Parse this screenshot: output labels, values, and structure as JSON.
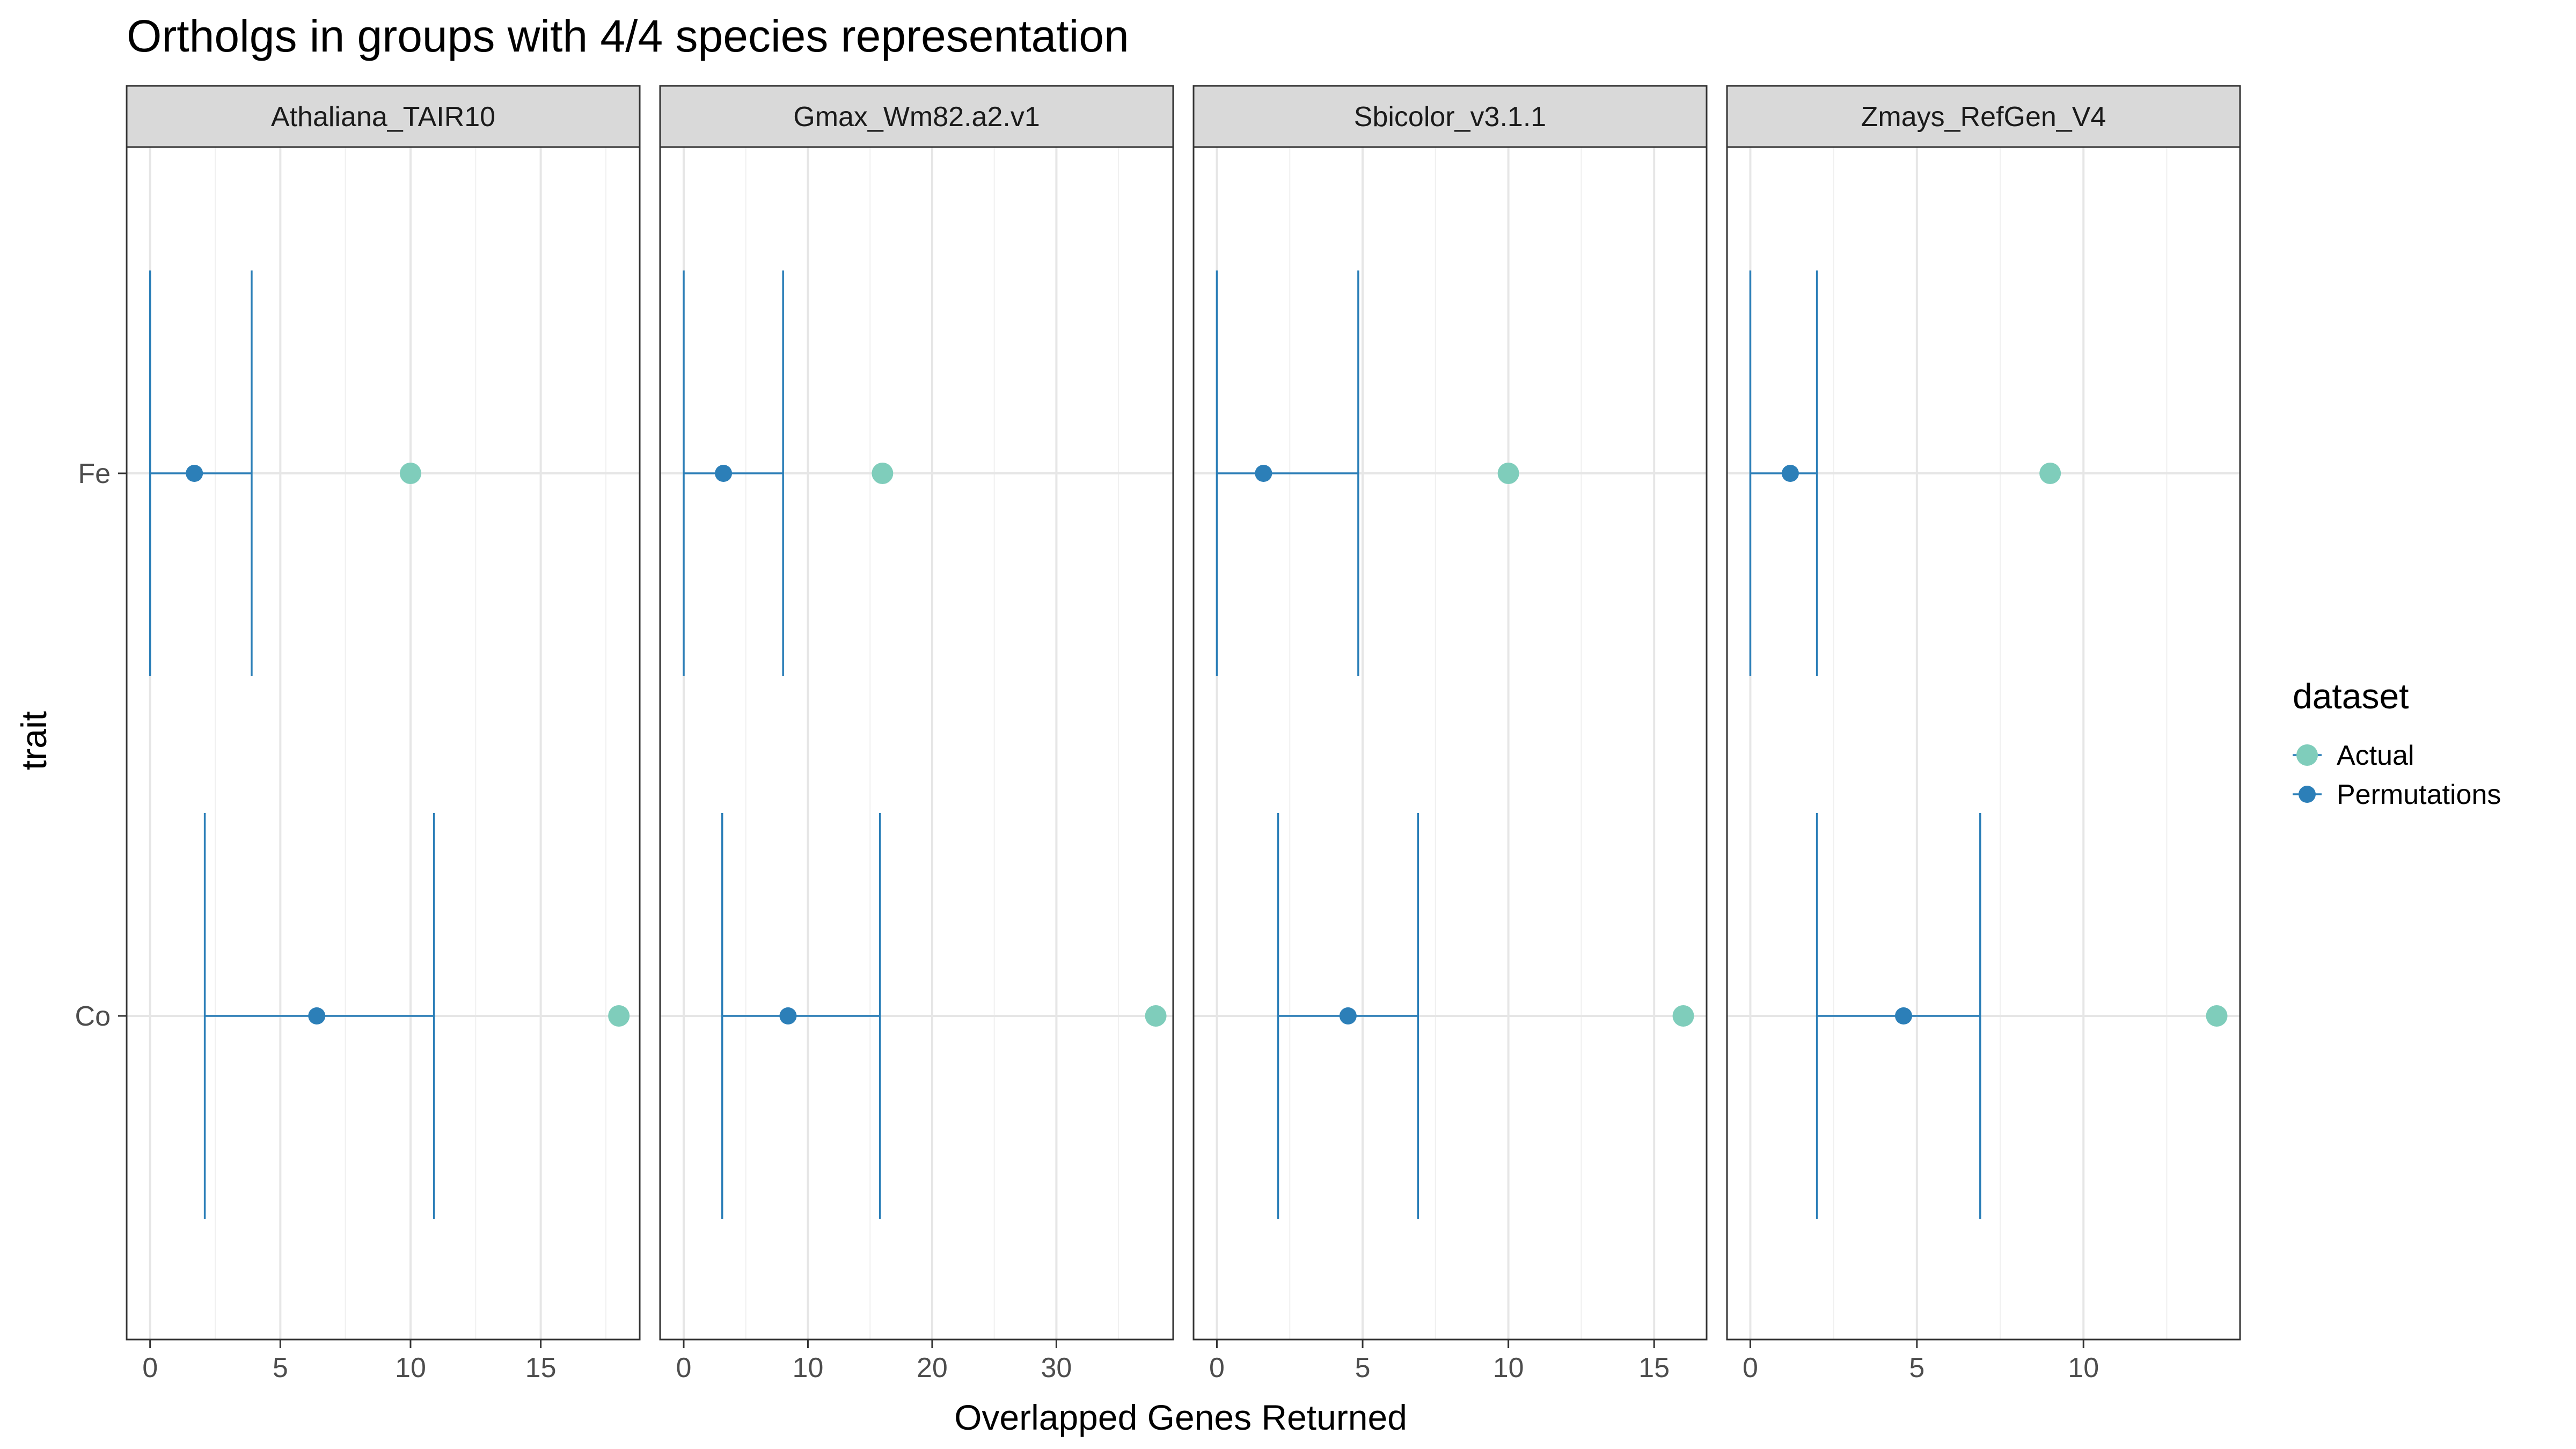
{
  "chart_data": {
    "type": "scatter",
    "title": "Ortholgs in groups with 4/4 species representation",
    "xlabel": "Overlapped Genes Returned",
    "ylabel": "trait",
    "categories": [
      "Fe",
      "Co"
    ],
    "grid": true,
    "legend": {
      "title": "dataset",
      "position": "right",
      "entries": [
        {
          "label": "Actual",
          "color": "#7fcdbb"
        },
        {
          "label": "Permutations",
          "color": "#2c7fb8"
        }
      ]
    },
    "panels": [
      {
        "name": "Athaliana_TAIR10",
        "xlim": [
          -0.9,
          18.8
        ],
        "xticks": [
          0,
          5,
          10,
          15
        ],
        "actual": {
          "Fe": 10,
          "Co": 18
        },
        "permutations": {
          "Fe": {
            "value": 1.7,
            "low": 0,
            "high": 3.9
          },
          "Co": {
            "value": 6.4,
            "low": 2.1,
            "high": 10.9
          }
        }
      },
      {
        "name": "Gmax_Wm82.a2.v1",
        "xlim": [
          -1.9,
          39.4
        ],
        "xticks": [
          0,
          10,
          20,
          30
        ],
        "actual": {
          "Fe": 16,
          "Co": 38
        },
        "permutations": {
          "Fe": {
            "value": 3.2,
            "low": 0,
            "high": 8
          },
          "Co": {
            "value": 8.4,
            "low": 3.1,
            "high": 15.8
          }
        }
      },
      {
        "name": "Sbicolor_v3.1.1",
        "xlim": [
          -0.8,
          16.8
        ],
        "xticks": [
          0,
          5,
          10,
          15
        ],
        "actual": {
          "Fe": 10,
          "Co": 16
        },
        "permutations": {
          "Fe": {
            "value": 1.6,
            "low": 0,
            "high": 4.85
          },
          "Co": {
            "value": 4.5,
            "low": 2.1,
            "high": 6.9
          }
        }
      },
      {
        "name": "Zmays_RefGen_V4",
        "xlim": [
          -0.7,
          14.7
        ],
        "xticks": [
          0,
          5,
          10
        ],
        "actual": {
          "Fe": 9,
          "Co": 14
        },
        "permutations": {
          "Fe": {
            "value": 1.2,
            "low": 0,
            "high": 2
          },
          "Co": {
            "value": 4.6,
            "low": 2,
            "high": 6.9
          }
        }
      }
    ]
  }
}
